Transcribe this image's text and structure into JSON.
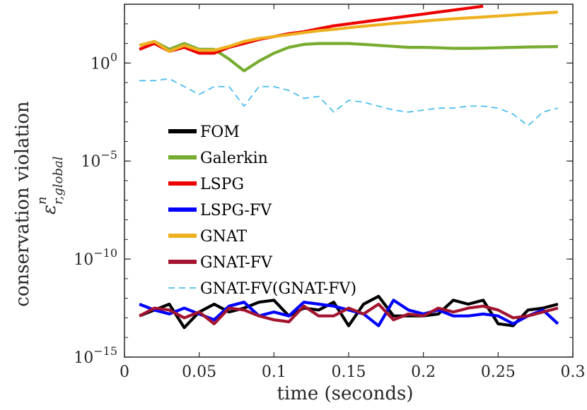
{
  "chart_data": {
    "type": "line",
    "xlabel": "time (seconds)",
    "ylabel": "conservation violation",
    "ylabel_symbol": "ε",
    "ylabel_sup": "n",
    "ylabel_sub": "r,global",
    "xlim": [
      0,
      0.3
    ],
    "ylim_log10": [
      -15,
      3
    ],
    "yscale": "log",
    "x_ticks": [
      0,
      0.05,
      0.1,
      0.15,
      0.2,
      0.25,
      0.3
    ],
    "x_tick_labels": [
      "0",
      "0.05",
      "0.1",
      "0.15",
      "0.2",
      "0.25",
      "0.3"
    ],
    "y_ticks": [
      {
        "exp": 0,
        "base": "10",
        "sup": "0"
      },
      {
        "exp": -5,
        "base": "10",
        "sup": "−5"
      },
      {
        "exp": -10,
        "base": "10",
        "sup": "−10"
      },
      {
        "exp": -15,
        "base": "10",
        "sup": "−15"
      }
    ],
    "legend_position": "center-left",
    "series": [
      {
        "name": "FOM",
        "color": "#000000",
        "dash": false,
        "x": [
          0.01,
          0.02,
          0.03,
          0.04,
          0.05,
          0.06,
          0.07,
          0.08,
          0.09,
          0.1,
          0.11,
          0.12,
          0.13,
          0.14,
          0.15,
          0.16,
          0.17,
          0.18,
          0.19,
          0.2,
          0.21,
          0.22,
          0.23,
          0.24,
          0.25,
          0.26,
          0.27,
          0.28,
          0.29
        ],
        "log10_y": [
          -12.9,
          -12.6,
          -12.3,
          -13.5,
          -12.7,
          -12.3,
          -12.7,
          -12.5,
          -12.2,
          -12.1,
          -12.9,
          -12.5,
          -12.6,
          -12.2,
          -13.4,
          -12.3,
          -11.9,
          -12.9,
          -12.9,
          -12.9,
          -12.8,
          -12.1,
          -12.3,
          -12.1,
          -13.3,
          -13.4,
          -12.6,
          -12.5,
          -12.3
        ]
      },
      {
        "name": "Galerkin",
        "color": "#77AC30",
        "dash": false,
        "x": [
          0.01,
          0.02,
          0.03,
          0.04,
          0.05,
          0.06,
          0.07,
          0.08,
          0.09,
          0.1,
          0.11,
          0.12,
          0.13,
          0.14,
          0.15,
          0.16,
          0.17,
          0.18,
          0.19,
          0.2,
          0.21,
          0.22,
          0.23,
          0.24,
          0.25,
          0.26,
          0.27,
          0.28,
          0.29
        ],
        "log10_y": [
          0.9,
          1.1,
          0.7,
          1.0,
          0.7,
          0.7,
          0.2,
          -0.4,
          0.1,
          0.5,
          0.8,
          0.95,
          1.0,
          1.0,
          1.0,
          0.95,
          0.9,
          0.85,
          0.8,
          0.8,
          0.78,
          0.75,
          0.75,
          0.76,
          0.78,
          0.8,
          0.82,
          0.83,
          0.84
        ]
      },
      {
        "name": "LSPG",
        "color": "#ED0000",
        "dash": false,
        "x": [
          0.01,
          0.02,
          0.03,
          0.04,
          0.05,
          0.06,
          0.07,
          0.08,
          0.09,
          0.1,
          0.11,
          0.12,
          0.13,
          0.14,
          0.15,
          0.16,
          0.17,
          0.18,
          0.19,
          0.2,
          0.21,
          0.22,
          0.23,
          0.24
        ],
        "log10_y": [
          0.7,
          1.0,
          0.6,
          0.8,
          0.5,
          0.5,
          0.8,
          1.0,
          1.2,
          1.35,
          1.5,
          1.6,
          1.75,
          1.9,
          2.0,
          2.1,
          2.2,
          2.3,
          2.4,
          2.5,
          2.6,
          2.7,
          2.8,
          2.9
        ]
      },
      {
        "name": "LSPG-FV",
        "color": "#0000FF",
        "dash": false,
        "x": [
          0.01,
          0.02,
          0.03,
          0.04,
          0.05,
          0.06,
          0.07,
          0.08,
          0.09,
          0.1,
          0.11,
          0.12,
          0.13,
          0.14,
          0.15,
          0.16,
          0.17,
          0.18,
          0.19,
          0.2,
          0.21,
          0.22,
          0.23,
          0.24,
          0.25,
          0.26,
          0.27,
          0.28,
          0.29
        ],
        "log10_y": [
          -12.3,
          -12.6,
          -12.8,
          -12.5,
          -12.8,
          -13.1,
          -12.4,
          -12.2,
          -12.9,
          -12.7,
          -12.9,
          -12.2,
          -12.3,
          -12.4,
          -12.6,
          -12.8,
          -13.4,
          -12.1,
          -12.6,
          -12.8,
          -12.6,
          -12.9,
          -12.9,
          -12.8,
          -12.9,
          -13.3,
          -12.9,
          -12.6,
          -13.3
        ]
      },
      {
        "name": "GNAT",
        "color": "#EDB120",
        "dash": false,
        "x": [
          0.01,
          0.02,
          0.03,
          0.04,
          0.05,
          0.06,
          0.07,
          0.08,
          0.09,
          0.1,
          0.11,
          0.12,
          0.13,
          0.14,
          0.15,
          0.16,
          0.17,
          0.18,
          0.19,
          0.2,
          0.21,
          0.22,
          0.23,
          0.24,
          0.25,
          0.26,
          0.27,
          0.28,
          0.29
        ],
        "log10_y": [
          0.9,
          1.1,
          0.6,
          0.9,
          0.65,
          0.65,
          0.85,
          1.1,
          1.25,
          1.35,
          1.45,
          1.55,
          1.65,
          1.72,
          1.8,
          1.88,
          1.95,
          2.02,
          2.08,
          2.14,
          2.2,
          2.26,
          2.3,
          2.35,
          2.4,
          2.45,
          2.5,
          2.55,
          2.6
        ]
      },
      {
        "name": "GNAT-FV",
        "color": "#A2142F",
        "dash": false,
        "x": [
          0.01,
          0.02,
          0.03,
          0.04,
          0.05,
          0.06,
          0.07,
          0.08,
          0.09,
          0.1,
          0.11,
          0.12,
          0.13,
          0.14,
          0.15,
          0.16,
          0.17,
          0.18,
          0.19,
          0.2,
          0.21,
          0.22,
          0.23,
          0.24,
          0.25,
          0.26,
          0.27,
          0.28,
          0.29
        ],
        "log10_y": [
          -12.9,
          -12.5,
          -12.6,
          -13.0,
          -12.7,
          -13.3,
          -12.5,
          -12.6,
          -12.9,
          -13.1,
          -13.2,
          -12.4,
          -12.9,
          -12.9,
          -12.5,
          -12.8,
          -12.3,
          -13.1,
          -12.8,
          -12.9,
          -12.5,
          -12.7,
          -12.5,
          -12.4,
          -12.6,
          -13.0,
          -12.9,
          -12.7,
          -12.5
        ]
      },
      {
        "name": "GNAT-FV(GNAT-FV)",
        "color": "#4DBEEE",
        "dash": true,
        "x": [
          0.01,
          0.02,
          0.03,
          0.04,
          0.05,
          0.06,
          0.07,
          0.08,
          0.09,
          0.1,
          0.11,
          0.12,
          0.13,
          0.14,
          0.15,
          0.16,
          0.17,
          0.18,
          0.19,
          0.2,
          0.21,
          0.22,
          0.23,
          0.24,
          0.25,
          0.26,
          0.27,
          0.28,
          0.29
        ],
        "log10_y": [
          -0.9,
          -0.9,
          -0.8,
          -1.2,
          -1.6,
          -1.2,
          -1.2,
          -2.2,
          -1.2,
          -1.2,
          -1.4,
          -1.8,
          -1.7,
          -2.5,
          -1.9,
          -2.0,
          -2.2,
          -2.4,
          -2.5,
          -2.4,
          -2.3,
          -2.3,
          -2.2,
          -2.2,
          -2.3,
          -2.6,
          -3.2,
          -2.5,
          -2.3
        ]
      }
    ]
  }
}
